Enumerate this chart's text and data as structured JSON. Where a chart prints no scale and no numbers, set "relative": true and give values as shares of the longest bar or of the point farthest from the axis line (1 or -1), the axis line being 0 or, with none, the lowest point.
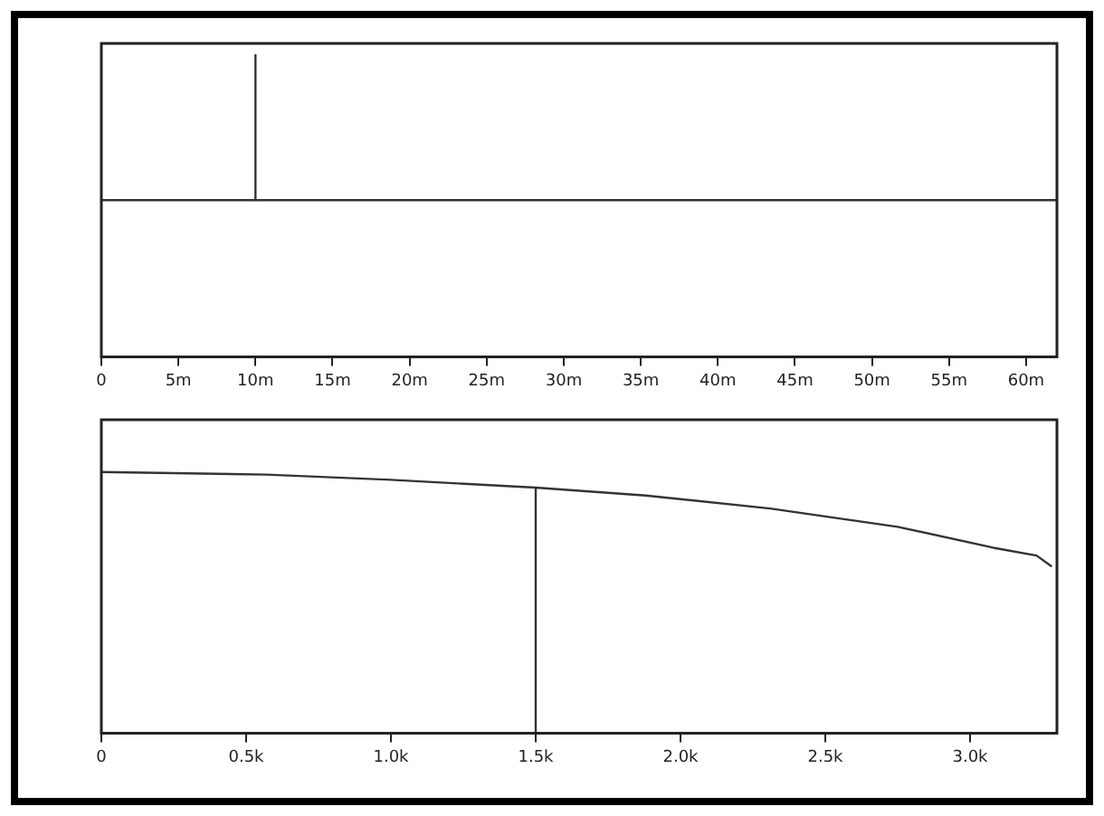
{
  "chart_data": [
    {
      "type": "line",
      "relative": true,
      "tick_labels": "x",
      "grid": false,
      "legend": false,
      "marker": "none",
      "line_style": "solid",
      "xlim": [
        0,
        62
      ],
      "xticks": [
        0,
        {
          "value": 5,
          "label": "5m"
        },
        {
          "value": 10,
          "label": "10m"
        },
        {
          "value": 15,
          "label": "15m"
        },
        {
          "value": 20,
          "label": "20m"
        },
        {
          "value": 25,
          "label": "25m"
        },
        {
          "value": 30,
          "label": "30m"
        },
        {
          "value": 35,
          "label": "35m"
        },
        {
          "value": 40,
          "label": "40m"
        },
        {
          "value": 45,
          "label": "45m"
        },
        {
          "value": 50,
          "label": "50m"
        },
        {
          "value": 55,
          "label": "55m"
        },
        {
          "value": 60,
          "label": "60m"
        }
      ],
      "series": [
        {
          "color": "#333333",
          "x": [
            0,
            10,
            10,
            10,
            62
          ],
          "values": [
            0,
            0,
            1,
            0,
            0
          ]
        }
      ]
    },
    {
      "type": "line",
      "relative": true,
      "tick_labels": "x",
      "grid": false,
      "legend": false,
      "marker": "none",
      "line_style": "solid",
      "xlim": [
        0,
        3.3
      ],
      "xticks": [
        0,
        {
          "value": 0.5,
          "label": "0.5k"
        },
        {
          "value": 1,
          "label": "1.0k"
        },
        {
          "value": 1.5,
          "label": "1.5k"
        },
        {
          "value": 2,
          "label": "2.0k"
        },
        {
          "value": 2.5,
          "label": "2.5k"
        },
        {
          "value": 3,
          "label": "3.0k"
        }
      ],
      "series": [
        {
          "color": "#333333",
          "x": [
            0,
            0.57,
            1.0,
            1.5,
            1.5,
            1.5,
            1.88,
            2.31,
            2.75,
            3.08,
            3.23,
            3.28
          ],
          "values": [
            1,
            0.99,
            0.97,
            0.94,
            0,
            0.94,
            0.91,
            0.86,
            0.79,
            0.71,
            0.68,
            0.64
          ]
        }
      ]
    }
  ]
}
